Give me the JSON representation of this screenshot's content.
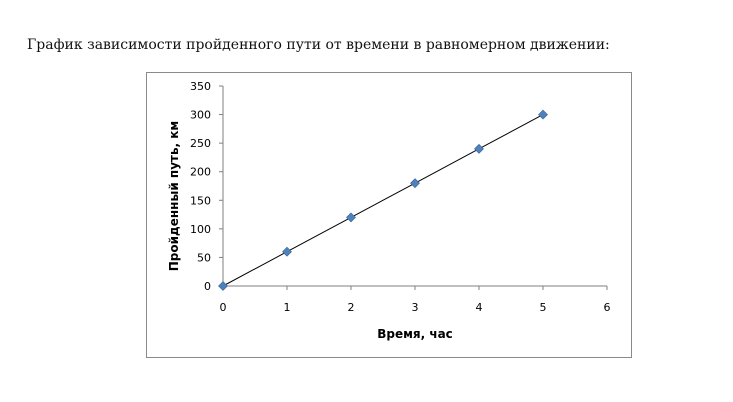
{
  "caption": "График зависимости пройденного пути от времени в равномерном движении:",
  "chart_data": {
    "type": "scatter",
    "title": "",
    "xlabel": "Время, час",
    "ylabel": "Пройденный путь, км",
    "xlim": [
      0,
      6
    ],
    "ylim": [
      0,
      350
    ],
    "xticks": [
      0,
      1,
      2,
      3,
      4,
      5,
      6
    ],
    "yticks": [
      0,
      50,
      100,
      150,
      200,
      250,
      300,
      350
    ],
    "grid": false,
    "legend": "none",
    "series": [
      {
        "x": [
          0,
          1,
          2,
          3,
          4,
          5
        ],
        "y": [
          0,
          60,
          120,
          180,
          240,
          300
        ],
        "marker": "diamond",
        "marker_color": "#4f81bd",
        "line_color": "#000000",
        "connected": true
      }
    ]
  }
}
